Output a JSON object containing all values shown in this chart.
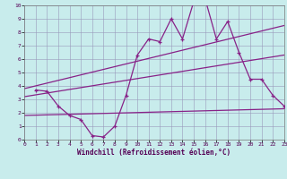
{
  "title": "",
  "xlabel": "Windchill (Refroidissement éolien,°C)",
  "background_color": "#c8ecec",
  "grid_color": "#9999bb",
  "line_color": "#882288",
  "xlim": [
    0,
    23
  ],
  "ylim": [
    0,
    10
  ],
  "xticks": [
    0,
    1,
    2,
    3,
    4,
    5,
    6,
    7,
    8,
    9,
    10,
    11,
    12,
    13,
    14,
    15,
    16,
    17,
    18,
    19,
    20,
    21,
    22,
    23
  ],
  "yticks": [
    0,
    1,
    2,
    3,
    4,
    5,
    6,
    7,
    8,
    9,
    10
  ],
  "series": {
    "line1_x": [
      1,
      2,
      3,
      4,
      5,
      6,
      7,
      8,
      9,
      10,
      11,
      12,
      13,
      14,
      15,
      16,
      17,
      18,
      19,
      20,
      21,
      22,
      23
    ],
    "line1_y": [
      3.7,
      3.6,
      2.5,
      1.8,
      1.5,
      0.3,
      0.2,
      1.0,
      3.3,
      6.3,
      7.5,
      7.3,
      9.0,
      7.5,
      10.3,
      10.5,
      7.5,
      8.8,
      6.5,
      4.5,
      4.5,
      3.3,
      2.5
    ],
    "line2_x": [
      0,
      23
    ],
    "line2_y": [
      3.8,
      8.5
    ],
    "line3_x": [
      0,
      23
    ],
    "line3_y": [
      3.2,
      6.3
    ],
    "line4_x": [
      0,
      23
    ],
    "line4_y": [
      1.8,
      2.3
    ]
  }
}
